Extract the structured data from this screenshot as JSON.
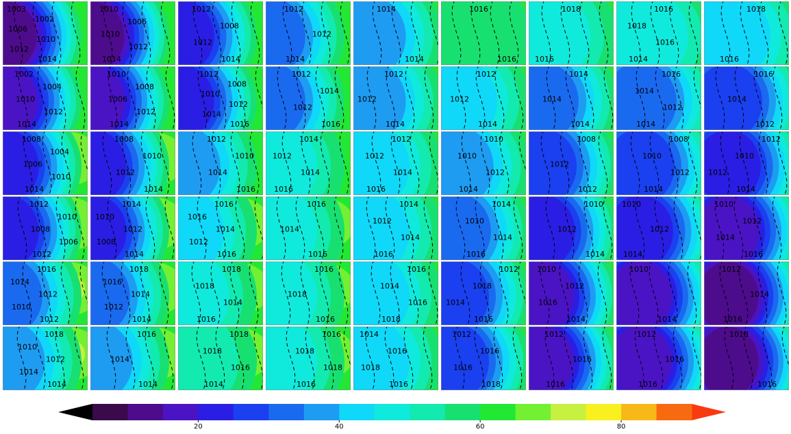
{
  "panels": [
    [
      {
        "labels": [
          "1003",
          "1002",
          "1006",
          "1010",
          "1012",
          "1014"
        ]
      },
      {
        "labels": [
          "1010",
          "1006",
          "1010",
          "1012",
          "1014"
        ]
      },
      {
        "labels": [
          "1012",
          "1008",
          "1012",
          "1014"
        ]
      },
      {
        "labels": [
          "1012",
          "1012",
          "1014"
        ]
      },
      {
        "labels": [
          "1014",
          "1014"
        ]
      },
      {
        "labels": [
          "1016",
          "1016"
        ]
      },
      {
        "labels": [
          "1018",
          "1016"
        ]
      },
      {
        "labels": [
          "1016",
          "1018",
          "1016",
          "1014"
        ]
      },
      {
        "labels": [
          "1018",
          "1016"
        ]
      }
    ],
    [
      {
        "labels": [
          "1002",
          "1004",
          "1010",
          "1012",
          "1014"
        ]
      },
      {
        "labels": [
          "1010",
          "1008",
          "1006",
          "1012",
          "1014"
        ]
      },
      {
        "labels": [
          "1012",
          "1008",
          "1010",
          "1012",
          "1014",
          "1016"
        ]
      },
      {
        "labels": [
          "1012",
          "1014",
          "1012",
          "1016"
        ]
      },
      {
        "labels": [
          "1012",
          "1012",
          "1014"
        ]
      },
      {
        "labels": [
          "1012",
          "1012",
          "1014"
        ]
      },
      {
        "labels": [
          "1014",
          "1014",
          "1014"
        ]
      },
      {
        "labels": [
          "1016",
          "1014",
          "1012",
          "1014"
        ]
      },
      {
        "labels": [
          "1016",
          "1014",
          "1012"
        ]
      }
    ],
    [
      {
        "labels": [
          "1008",
          "1004",
          "1006",
          "1010",
          "1014"
        ]
      },
      {
        "labels": [
          "1008",
          "1010",
          "1012",
          "1014"
        ]
      },
      {
        "labels": [
          "1012",
          "1010",
          "1014",
          "1016"
        ]
      },
      {
        "labels": [
          "1014",
          "1012",
          "1014",
          "1016"
        ]
      },
      {
        "labels": [
          "1012",
          "1012",
          "1014",
          "1016"
        ]
      },
      {
        "labels": [
          "1010",
          "1010",
          "1012",
          "1014"
        ]
      },
      {
        "labels": [
          "1008",
          "1012",
          "1012"
        ]
      },
      {
        "labels": [
          "1008",
          "1010",
          "1012",
          "1014"
        ]
      },
      {
        "labels": [
          "1012",
          "1010",
          "1012",
          "1014"
        ]
      }
    ],
    [
      {
        "labels": [
          "1012",
          "1010",
          "1008",
          "1006",
          "1012"
        ]
      },
      {
        "labels": [
          "1014",
          "1010",
          "1012",
          "1008",
          "1014"
        ]
      },
      {
        "labels": [
          "1016",
          "1016",
          "1014",
          "1012",
          "1016"
        ]
      },
      {
        "labels": [
          "1016",
          "1014",
          "1016"
        ]
      },
      {
        "labels": [
          "1014",
          "1012",
          "1014",
          "1016"
        ]
      },
      {
        "labels": [
          "1014",
          "1010",
          "1014",
          "1016"
        ]
      },
      {
        "labels": [
          "1010",
          "1012",
          "1014"
        ]
      },
      {
        "labels": [
          "1010",
          "1012",
          "1014"
        ]
      },
      {
        "labels": [
          "1010",
          "1012",
          "1014",
          "1016"
        ]
      }
    ],
    [
      {
        "labels": [
          "1016",
          "1014",
          "1012",
          "1010",
          "1012"
        ]
      },
      {
        "labels": [
          "1018",
          "1016",
          "1014",
          "1012",
          "1014"
        ]
      },
      {
        "labels": [
          "1018",
          "1018",
          "1014",
          "1016"
        ]
      },
      {
        "labels": [
          "1016",
          "1018",
          "1016"
        ]
      },
      {
        "labels": [
          "1016",
          "1014",
          "1016",
          "1018"
        ]
      },
      {
        "labels": [
          "1012",
          "1018",
          "1014",
          "1016"
        ]
      },
      {
        "labels": [
          "1010",
          "1012",
          "1016",
          "1014"
        ]
      },
      {
        "labels": [
          "1010",
          "1014"
        ]
      },
      {
        "labels": [
          "1012",
          "1014",
          "1016"
        ]
      }
    ],
    [
      {
        "labels": [
          "1018",
          "1010",
          "1012",
          "1014",
          "1014"
        ]
      },
      {
        "labels": [
          "1016",
          "1014",
          "1014"
        ]
      },
      {
        "labels": [
          "1018",
          "1018",
          "1016",
          "1014"
        ]
      },
      {
        "labels": [
          "1016",
          "1018",
          "1018",
          "1016"
        ]
      },
      {
        "labels": [
          "1014",
          "1016",
          "1018",
          "1016"
        ]
      },
      {
        "labels": [
          "1012",
          "1016",
          "1016",
          "1018"
        ]
      },
      {
        "labels": [
          "1012",
          "1016",
          "1016"
        ]
      },
      {
        "labels": [
          "1012",
          "1016",
          "1016"
        ]
      },
      {
        "labels": [
          "1018",
          "1016"
        ]
      }
    ]
  ],
  "colorbar": {
    "lim": [
      5,
      90
    ],
    "ticks": [
      20,
      40,
      60,
      80
    ],
    "colors": [
      "#3a0a4a",
      "#4c0c8c",
      "#4a14c4",
      "#2a1ee4",
      "#1a40f0",
      "#1a6af0",
      "#1e9cf2",
      "#10d8f8",
      "#10eadc",
      "#12eab0",
      "#18e070",
      "#22e834",
      "#74f032",
      "#c8f040",
      "#f8f020",
      "#f8b818",
      "#f86a10"
    ],
    "under_color": "#000000",
    "over_color": "#f83a10"
  }
}
